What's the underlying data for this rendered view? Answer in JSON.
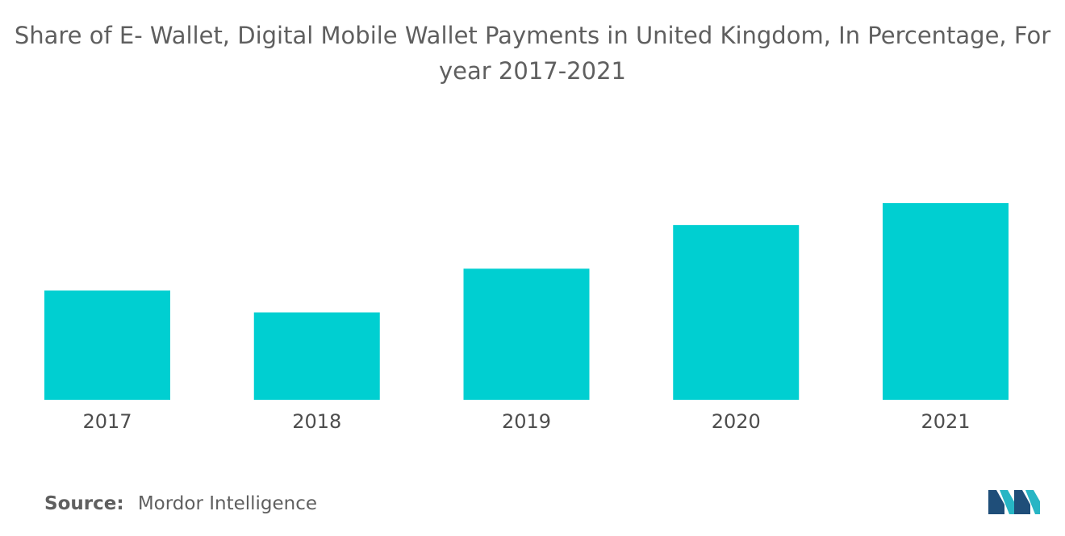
{
  "chart_data": {
    "type": "bar",
    "title_line1": "Share of E- Wallet, Digital Mobile Wallet Payments in United Kingdom, In Percentage, For",
    "title_line2": "year 2017-2021",
    "categories": [
      "2017",
      "2018",
      "2019",
      "2020",
      "2021"
    ],
    "values": [
      27.5,
      22,
      33,
      44,
      49.5
    ],
    "ylim": [
      0,
      56
    ],
    "xlabel": "",
    "ylabel": "",
    "grid": false,
    "legend": "none",
    "bar_color": "#00cfd1"
  },
  "source": {
    "label": "Source:",
    "text": "Mordor Intelligence"
  },
  "logo": {
    "icon": "mordor-intelligence-logo",
    "colors": [
      "#1f4e79",
      "#27b5c4"
    ]
  }
}
